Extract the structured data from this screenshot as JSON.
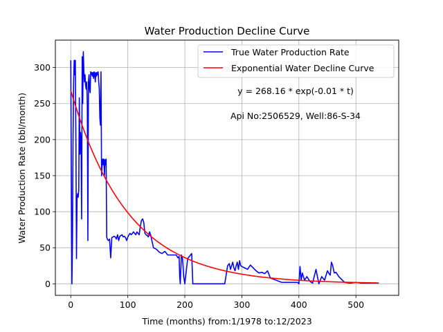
{
  "chart_data": {
    "type": "line",
    "title": "Water Production Decline Curve",
    "xlabel": "Time (months) from:1/1978 to:12/2023",
    "ylabel": "Water Production Rate (bbl/month)",
    "xlim": [
      -27,
      575
    ],
    "ylim": [
      -16,
      338
    ],
    "xticks": [
      0,
      100,
      200,
      300,
      400,
      500
    ],
    "yticks": [
      0,
      50,
      100,
      150,
      200,
      250,
      300
    ],
    "grid": true,
    "legend_position": "top-right",
    "annotations": [
      "y = 268.16 * exp(-0.01 * t)",
      "Api No:2506529, Well:86-S-34"
    ],
    "series": [
      {
        "name": "True Water Production Rate",
        "color": "#0000ff",
        "x": [
          0,
          1,
          2,
          3,
          4,
          5,
          6,
          7,
          8,
          9,
          10,
          11,
          12,
          13,
          14,
          15,
          16,
          17,
          18,
          19,
          20,
          21,
          22,
          23,
          24,
          25,
          26,
          27,
          28,
          29,
          30,
          31,
          32,
          33,
          34,
          35,
          36,
          37,
          38,
          39,
          40,
          41,
          42,
          43,
          44,
          45,
          46,
          47,
          48,
          49,
          50,
          51,
          52,
          53,
          54,
          55,
          56,
          57,
          58,
          59,
          60,
          61,
          62,
          63,
          64,
          66,
          68,
          70,
          72,
          74,
          76,
          78,
          80,
          82,
          84,
          86,
          88,
          90,
          92,
          94,
          96,
          98,
          100,
          102,
          104,
          106,
          108,
          110,
          112,
          114,
          116,
          118,
          120,
          122,
          124,
          126,
          128,
          130,
          132,
          134,
          136,
          138,
          140,
          145,
          150,
          155,
          160,
          165,
          170,
          175,
          180,
          185,
          188,
          190,
          191,
          192,
          194,
          196,
          198,
          200,
          205,
          210,
          212,
          214,
          220,
          230,
          240,
          250,
          260,
          270,
          275,
          278,
          280,
          282,
          284,
          286,
          288,
          290,
          292,
          294,
          296,
          298,
          300,
          305,
          310,
          315,
          320,
          325,
          330,
          335,
          340,
          345,
          350,
          360,
          370,
          380,
          390,
          398,
          400,
          402,
          404,
          406,
          410,
          414,
          418,
          420,
          424,
          430,
          435,
          440,
          445,
          450,
          453,
          455,
          457,
          459,
          462,
          465,
          470,
          480,
          490,
          500,
          510,
          520,
          530,
          540
        ],
        "values": [
          310,
          150,
          0,
          60,
          200,
          280,
          310,
          290,
          310,
          200,
          35,
          120,
          125,
          120,
          130,
          258,
          180,
          210,
          200,
          90,
          315,
          250,
          322,
          295,
          280,
          290,
          275,
          270,
          280,
          250,
          60,
          280,
          290,
          270,
          265,
          294,
          290,
          293,
          288,
          293,
          285,
          294,
          292,
          280,
          293,
          288,
          293,
          290,
          294,
          280,
          270,
          230,
          220,
          294,
          150,
          165,
          173,
          165,
          173,
          150,
          172,
          165,
          173,
          65,
          62,
          60,
          62,
          36,
          64,
          65,
          66,
          65,
          62,
          68,
          60,
          66,
          67,
          68,
          65,
          66,
          64,
          60,
          65,
          68,
          70,
          68,
          70,
          72,
          70,
          68,
          72,
          70,
          68,
          80,
          88,
          90,
          85,
          70,
          68,
          67,
          65,
          72,
          68,
          50,
          48,
          44,
          42,
          45,
          40,
          40,
          40,
          40,
          36,
          38,
          10,
          0,
          40,
          35,
          10,
          0,
          35,
          40,
          42,
          0,
          0,
          0,
          0,
          0,
          0,
          0,
          25,
          28,
          20,
          25,
          30,
          22,
          18,
          25,
          30,
          20,
          32,
          25,
          24,
          22,
          20,
          26,
          22,
          18,
          15,
          16,
          14,
          18,
          8,
          5,
          2,
          2,
          2,
          2,
          0,
          24,
          5,
          15,
          5,
          10,
          5,
          3,
          1,
          20,
          0,
          10,
          5,
          18,
          14,
          12,
          30,
          26,
          15,
          16,
          10,
          2,
          1,
          2,
          1,
          1,
          1,
          1
        ]
      },
      {
        "name": "Exponential Water Decline Curve",
        "color": "#ff0000",
        "function": {
          "a": 268.16,
          "b": 0.01
        },
        "x_range": [
          0,
          540
        ]
      }
    ]
  }
}
